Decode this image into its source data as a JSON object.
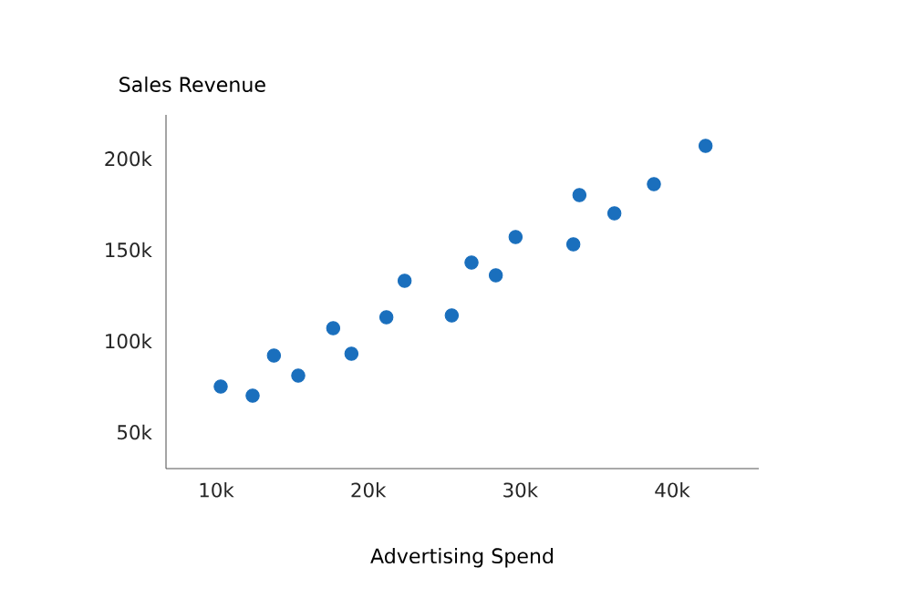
{
  "chart_data": {
    "type": "scatter",
    "xlabel": "Advertising Spend",
    "ylabel": "Sales Revenue",
    "x": [
      10300,
      12400,
      13800,
      15400,
      17700,
      18900,
      21200,
      22400,
      25500,
      26800,
      28400,
      29700,
      33500,
      33900,
      36200,
      38800,
      42200
    ],
    "values": [
      75000,
      70000,
      92000,
      81000,
      107000,
      93000,
      113000,
      133000,
      114000,
      143000,
      136000,
      157000,
      153000,
      180000,
      170000,
      186000,
      207000
    ],
    "color": "#1a6fbd",
    "marker": "circle",
    "xlim": [
      6700,
      45700
    ],
    "ylim": [
      30000,
      224000
    ],
    "xticks": [
      {
        "value": 10000,
        "label": "10k"
      },
      {
        "value": 20000,
        "label": "20k"
      },
      {
        "value": 30000,
        "label": "30k"
      },
      {
        "value": 40000,
        "label": "40k"
      }
    ],
    "yticks": [
      {
        "value": 50000,
        "label": "50k"
      },
      {
        "value": 100000,
        "label": "100k"
      },
      {
        "value": 150000,
        "label": "150k"
      },
      {
        "value": 200000,
        "label": "200k"
      }
    ]
  }
}
